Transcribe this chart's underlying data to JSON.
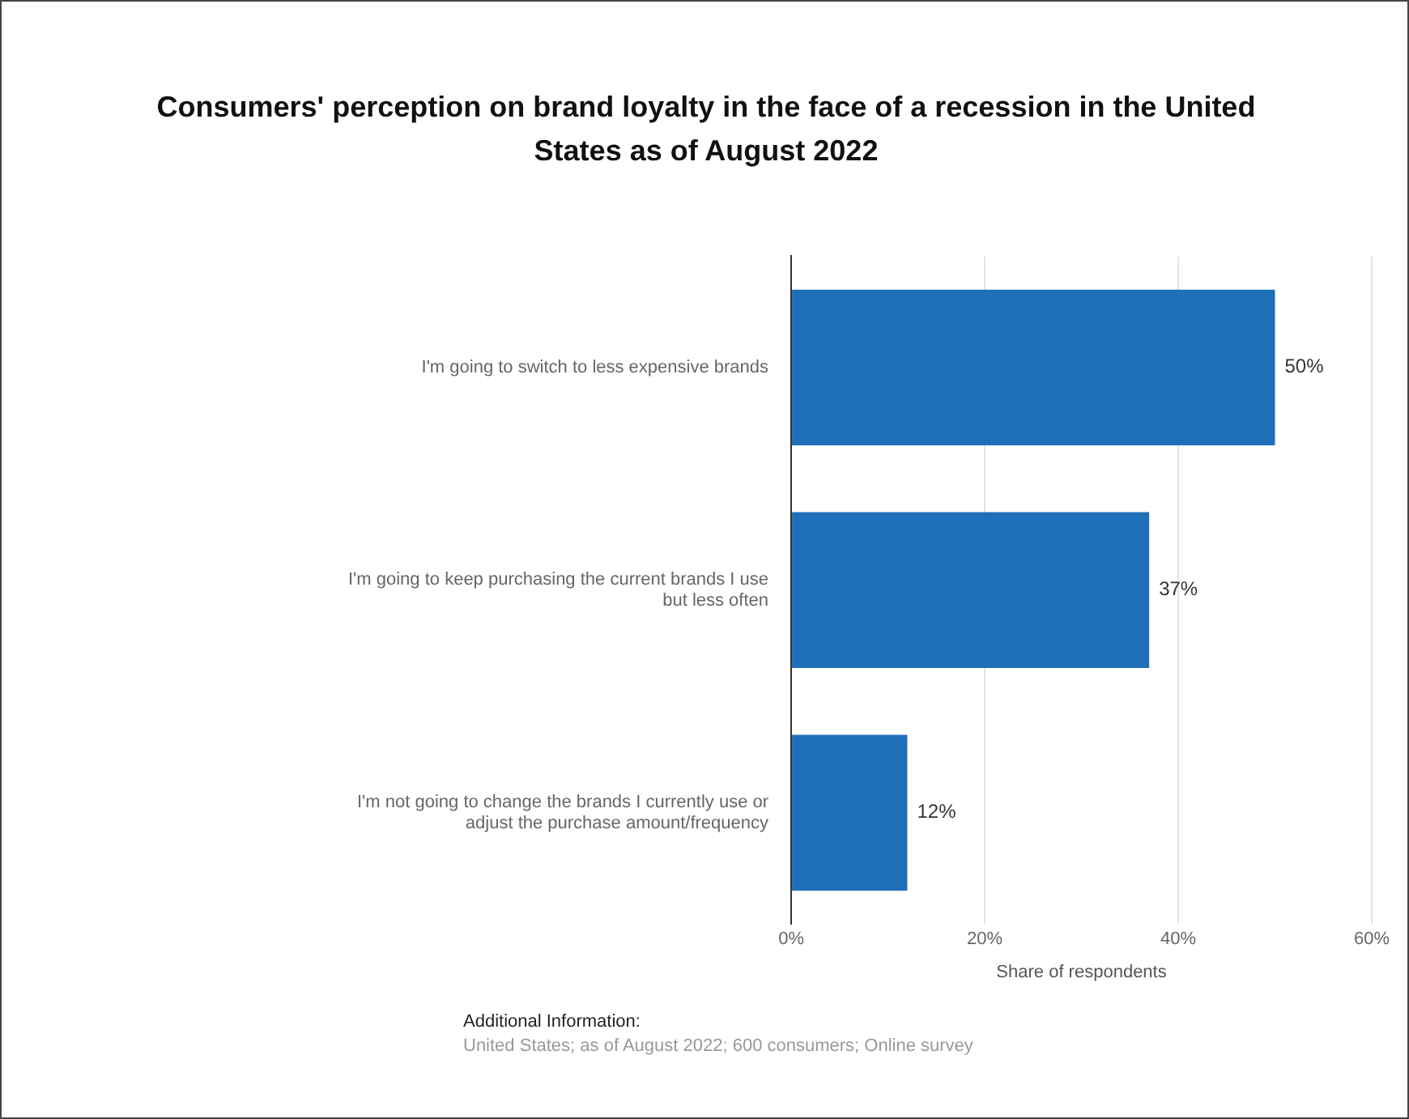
{
  "chart_data": {
    "type": "bar",
    "orientation": "horizontal",
    "title": "Consumers' perception on brand loyalty in the face of a recession in the United States as of August 2022",
    "categories": [
      "I'm going to switch to less expensive brands",
      "I'm going to keep purchasing the current brands I use but less often",
      "I'm not going to change the brands I currently use or adjust the purchase amount/frequency"
    ],
    "values": [
      50,
      37,
      12
    ],
    "color": "#1f6fb8",
    "value_labels": [
      "50%",
      "37%",
      "12%"
    ],
    "xlabel": "Share of respondents",
    "xlim": [
      0,
      60
    ],
    "xticks": [
      {
        "value": 0,
        "label": "0%"
      },
      {
        "value": 20,
        "label": "20%"
      },
      {
        "value": 40,
        "label": "40%"
      },
      {
        "value": 60,
        "label": "60%"
      }
    ],
    "grid": "x",
    "legend": false,
    "annotations": [
      "Additional Information:",
      "United States; as of August 2022; 600 consumers; Online survey"
    ]
  }
}
